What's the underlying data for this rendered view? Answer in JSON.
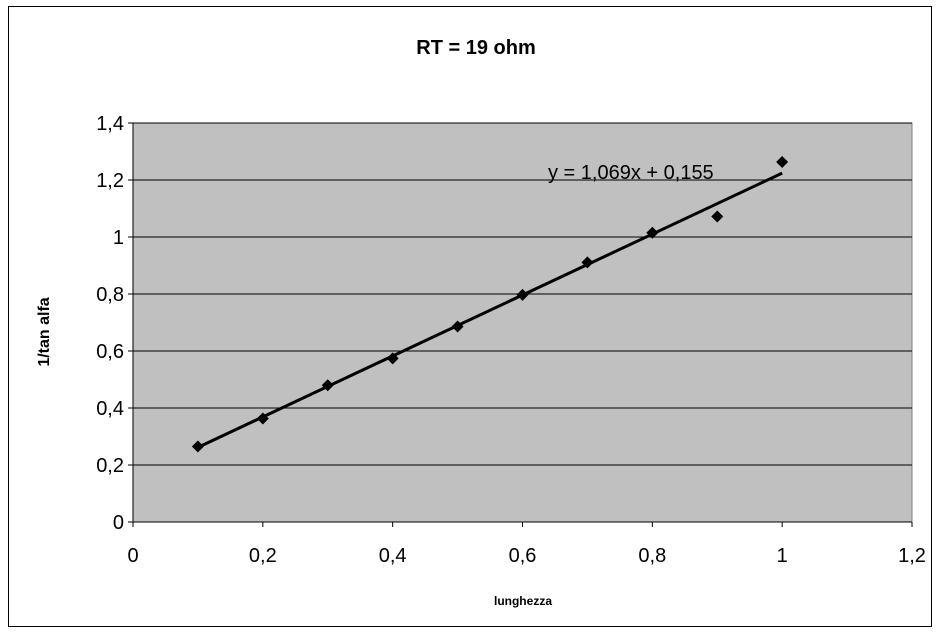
{
  "chart_data": {
    "type": "scatter",
    "title": "RT = 19 ohm",
    "xlabel": "lunghezza",
    "ylabel": "1/tan alfa",
    "xlim": [
      0,
      1.2
    ],
    "ylim": [
      0,
      1.4
    ],
    "xticks": [
      "0",
      "0,2",
      "0,4",
      "0,6",
      "0,8",
      "1",
      "1,2"
    ],
    "yticks": [
      "0",
      "0,2",
      "0,4",
      "0,6",
      "0,8",
      "1",
      "1,2",
      "1,4"
    ],
    "grid": "horizontal",
    "plot_background": "#c0c0c0",
    "series": [
      {
        "x": [
          0.1,
          0.2,
          0.3,
          0.4,
          0.5,
          0.6,
          0.7,
          0.8,
          0.9,
          1.0
        ],
        "y": [
          0.265,
          0.363,
          0.48,
          0.574,
          0.686,
          0.797,
          0.911,
          1.015,
          1.072,
          1.263
        ],
        "marker": "diamond",
        "color": "#000000"
      }
    ],
    "trendline": {
      "type": "linear",
      "slope": 1.069,
      "intercept": 0.155,
      "x_range": [
        0.1,
        1.0
      ],
      "equation": "y = 1,069x + 0,155",
      "color": "#000000"
    }
  }
}
